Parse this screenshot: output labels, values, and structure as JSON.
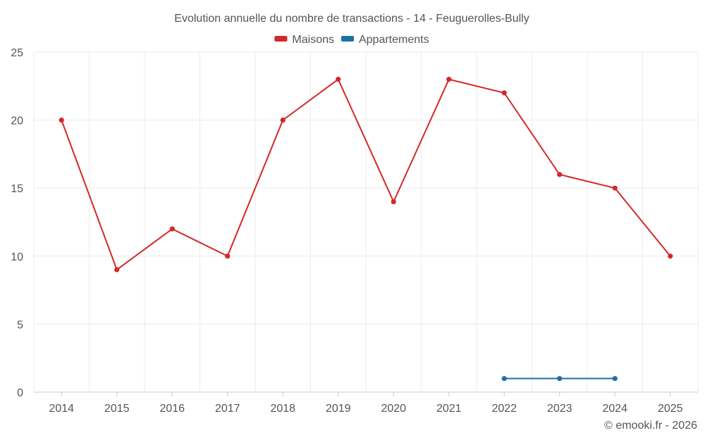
{
  "chart_data": {
    "type": "line",
    "title": "Evolution annuelle du nombre de transactions - 14 - Feuguerolles-Bully",
    "xlabel": "",
    "ylabel": "",
    "categories": [
      "2014",
      "2015",
      "2016",
      "2017",
      "2018",
      "2019",
      "2020",
      "2021",
      "2022",
      "2023",
      "2024",
      "2025"
    ],
    "ylim": [
      0,
      25
    ],
    "yticks": [
      0,
      5,
      10,
      15,
      20,
      25
    ],
    "grid": true,
    "legend_position": "top-center",
    "series": [
      {
        "name": "Maisons",
        "color": "#d62728",
        "values": [
          20,
          9,
          12,
          10,
          20,
          23,
          14,
          23,
          22,
          16,
          15,
          10
        ]
      },
      {
        "name": "Appartements",
        "color": "#1f6fa8",
        "values": [
          null,
          null,
          null,
          null,
          null,
          null,
          null,
          null,
          1,
          1,
          1,
          null
        ]
      }
    ]
  },
  "credit": "© emooki.fr - 2026"
}
